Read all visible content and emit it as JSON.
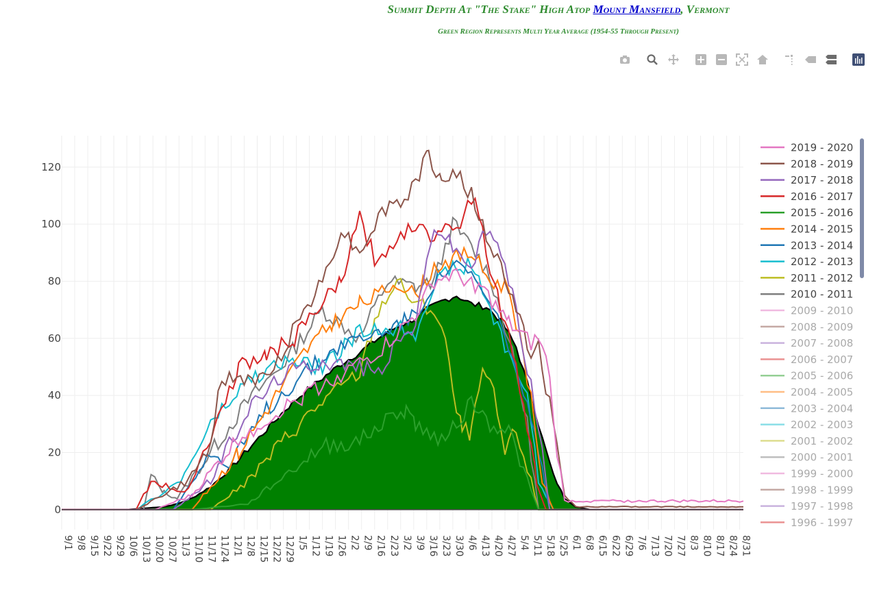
{
  "header": {
    "title_prefix": "Summit Depth At \"The Stake\" High Atop ",
    "title_link": "Mount Mansfield",
    "title_suffix": ", Vermont",
    "subtitle": "Green Region Represents Multi Year Average (1954-55 Through Present)"
  },
  "modebar": {
    "icons": [
      "camera-icon",
      "zoom-icon",
      "pan-icon",
      "zoom-in-icon",
      "zoom-out-icon",
      "autoscale-icon",
      "reset-axes-icon",
      "spike-lines-icon",
      "hover-closest-icon",
      "hover-compare-icon",
      "plotly-logo-icon"
    ]
  },
  "chart_data": {
    "type": "area+line",
    "title": "Summit Depth At \"The Stake\" High Atop Mount Mansfield, Vermont",
    "xlabel": "",
    "ylabel": "",
    "ylim": [
      -7,
      131
    ],
    "xlim_days": [
      0,
      366
    ],
    "grid": true,
    "legend_position": "right",
    "yticks": [
      0,
      20,
      40,
      60,
      80,
      100,
      120
    ],
    "xtick_labels": [
      "9/1",
      "9/8",
      "9/15",
      "9/22",
      "9/29",
      "10/6",
      "10/13",
      "10/20",
      "10/27",
      "11/3",
      "11/10",
      "11/17",
      "11/24",
      "12/1",
      "12/8",
      "12/15",
      "12/22",
      "12/29",
      "1/5",
      "1/12",
      "1/19",
      "1/26",
      "2/2",
      "2/9",
      "2/16",
      "2/23",
      "3/2",
      "3/9",
      "3/16",
      "3/23",
      "3/30",
      "4/6",
      "4/13",
      "4/20",
      "4/27",
      "5/4",
      "5/11",
      "5/18",
      "5/25",
      "6/1",
      "6/8",
      "6/15",
      "6/22",
      "6/29",
      "7/6",
      "7/13",
      "7/20",
      "7/27",
      "8/3",
      "8/10",
      "8/17",
      "8/24",
      "8/31"
    ],
    "average": {
      "name": "Multi Year Average",
      "day": [
        0,
        35,
        45,
        55,
        62,
        70,
        80,
        90,
        100,
        110,
        120,
        130,
        140,
        150,
        160,
        170,
        180,
        190,
        196,
        204,
        212,
        220,
        228,
        236,
        244,
        252,
        258,
        264,
        270,
        276,
        284,
        366
      ],
      "depth": [
        0,
        0,
        0.5,
        1,
        2,
        4,
        8,
        14,
        21,
        28,
        35,
        41,
        46,
        51,
        55,
        60,
        64,
        67,
        70,
        73,
        75,
        72,
        71,
        66,
        57,
        40,
        25,
        12,
        4,
        1,
        0,
        0
      ]
    },
    "series": [
      {
        "name": "2019 - 2020",
        "color": "#e377c2",
        "visible": true,
        "day": [
          0,
          50,
          70,
          95,
          130,
          170,
          190,
          200,
          210,
          225,
          240,
          252,
          256,
          262,
          264,
          270,
          366
        ],
        "depth": [
          0,
          0,
          5,
          25,
          40,
          55,
          68,
          80,
          82,
          78,
          65,
          58,
          60,
          48,
          30,
          3,
          3
        ]
      },
      {
        "name": "2018 - 2019",
        "color": "#8c564b",
        "visible": true,
        "day": [
          0,
          40,
          68,
          78,
          86,
          100,
          110,
          130,
          140,
          150,
          160,
          168,
          176,
          184,
          190,
          197,
          204,
          212,
          220,
          228,
          236,
          244,
          252,
          256,
          260,
          262,
          270,
          276,
          366
        ],
        "depth": [
          0,
          0,
          10,
          20,
          45,
          46,
          45,
          70,
          80,
          98,
          90,
          100,
          107,
          108,
          115,
          124,
          115,
          118,
          110,
          95,
          85,
          70,
          55,
          58,
          38,
          38,
          5,
          1,
          1
        ]
      },
      {
        "name": "2017 - 2018",
        "color": "#9467bd",
        "visible": true,
        "day": [
          0,
          60,
          80,
          100,
          120,
          140,
          160,
          170,
          180,
          190,
          200,
          210,
          220,
          228,
          236,
          244,
          250,
          256,
          262,
          366
        ],
        "depth": [
          0,
          0,
          10,
          35,
          48,
          52,
          50,
          48,
          58,
          65,
          100,
          92,
          85,
          98,
          90,
          70,
          50,
          30,
          0,
          0
        ]
      },
      {
        "name": "2016 - 2017",
        "color": "#d62728",
        "visible": true,
        "day": [
          0,
          40,
          48,
          56,
          66,
          80,
          95,
          110,
          125,
          135,
          150,
          160,
          170,
          180,
          190,
          198,
          206,
          212,
          222,
          228,
          236,
          244,
          250,
          255,
          260,
          366
        ],
        "depth": [
          0,
          0,
          10,
          8,
          6,
          25,
          50,
          54,
          60,
          68,
          80,
          102,
          85,
          96,
          100,
          95,
          102,
          98,
          112,
          90,
          70,
          50,
          30,
          10,
          0,
          0
        ]
      },
      {
        "name": "2015 - 2016",
        "color": "#2ca02c",
        "visible": true,
        "day": [
          0,
          70,
          100,
          120,
          140,
          160,
          180,
          185,
          190,
          200,
          210,
          220,
          230,
          240,
          250,
          256,
          366
        ],
        "depth": [
          0,
          0,
          2,
          12,
          22,
          24,
          34,
          35,
          30,
          25,
          28,
          38,
          30,
          28,
          10,
          0,
          0
        ]
      },
      {
        "name": "2014 - 2015",
        "color": "#ff7f0e",
        "visible": true,
        "day": [
          0,
          70,
          95,
          115,
          130,
          145,
          160,
          170,
          180,
          190,
          200,
          210,
          220,
          230,
          240,
          246,
          252,
          258,
          264,
          366
        ],
        "depth": [
          0,
          0,
          20,
          40,
          55,
          65,
          72,
          75,
          80,
          75,
          85,
          88,
          90,
          80,
          78,
          60,
          40,
          10,
          0,
          0
        ]
      },
      {
        "name": "2013 - 2014",
        "color": "#1f77b4",
        "visible": true,
        "day": [
          0,
          60,
          70,
          78,
          90,
          110,
          130,
          150,
          170,
          190,
          200,
          210,
          220,
          230,
          240,
          248,
          256,
          262,
          366
        ],
        "depth": [
          0,
          0,
          10,
          20,
          15,
          35,
          48,
          58,
          62,
          68,
          80,
          86,
          82,
          72,
          58,
          40,
          20,
          0,
          0
        ]
      },
      {
        "name": "2012 - 2013",
        "color": "#17becf",
        "visible": true,
        "day": [
          0,
          40,
          64,
          80,
          100,
          120,
          140,
          160,
          180,
          190,
          200,
          210,
          220,
          230,
          240,
          250,
          256,
          264,
          366
        ],
        "depth": [
          0,
          0,
          10,
          30,
          45,
          52,
          50,
          62,
          64,
          62,
          80,
          84,
          86,
          70,
          55,
          40,
          10,
          0,
          0
        ]
      },
      {
        "name": "2011 - 2012",
        "color": "#bcbd22",
        "visible": true,
        "day": [
          0,
          80,
          100,
          120,
          140,
          160,
          170,
          180,
          190,
          200,
          206,
          210,
          215,
          220,
          226,
          232,
          238,
          244,
          252,
          256,
          366
        ],
        "depth": [
          0,
          0,
          10,
          25,
          38,
          48,
          70,
          80,
          72,
          70,
          60,
          40,
          28,
          27,
          49,
          40,
          20,
          28,
          10,
          0,
          0
        ]
      },
      {
        "name": "2010 - 2011",
        "color": "#7f7f7f",
        "visible": true,
        "day": [
          0,
          44,
          48,
          55,
          62,
          80,
          100,
          120,
          140,
          160,
          175,
          190,
          200,
          210,
          220,
          230,
          240,
          250,
          256,
          366
        ],
        "depth": [
          0,
          0,
          12,
          6,
          4,
          20,
          38,
          52,
          70,
          60,
          80,
          78,
          80,
          100,
          92,
          82,
          60,
          30,
          0,
          0
        ]
      },
      {
        "name": "2009 - 2010",
        "color": "#e377c2",
        "visible": false
      },
      {
        "name": "2008 - 2009",
        "color": "#8c564b",
        "visible": false
      },
      {
        "name": "2007 - 2008",
        "color": "#9467bd",
        "visible": false
      },
      {
        "name": "2006 - 2007",
        "color": "#d62728",
        "visible": false
      },
      {
        "name": "2005 - 2006",
        "color": "#2ca02c",
        "visible": false
      },
      {
        "name": "2004 - 2005",
        "color": "#ff7f0e",
        "visible": false
      },
      {
        "name": "2003 - 2004",
        "color": "#1f77b4",
        "visible": false
      },
      {
        "name": "2002 - 2003",
        "color": "#17becf",
        "visible": false
      },
      {
        "name": "2001 - 2002",
        "color": "#bcbd22",
        "visible": false
      },
      {
        "name": "2000 - 2001",
        "color": "#7f7f7f",
        "visible": false
      },
      {
        "name": "1999 - 2000",
        "color": "#e377c2",
        "visible": false
      },
      {
        "name": "1998 - 1999",
        "color": "#8c564b",
        "visible": false
      },
      {
        "name": "1997 - 1998",
        "color": "#9467bd",
        "visible": false
      },
      {
        "name": "1996 - 1997",
        "color": "#d62728",
        "visible": false
      }
    ]
  },
  "colors": {
    "average_fill": "#008000",
    "average_line": "#000000",
    "grid": "#eeeeee",
    "title": "#2e8b2e",
    "link": "#0000cc"
  }
}
